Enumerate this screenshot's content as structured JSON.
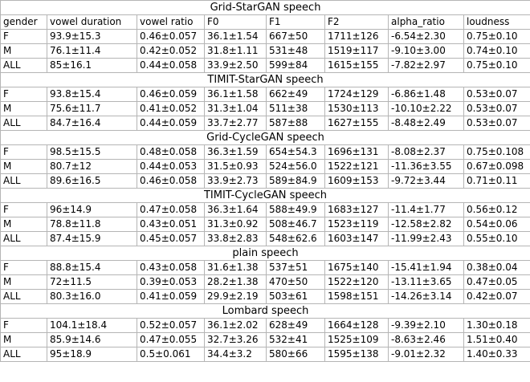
{
  "header": [
    "gender",
    "vowel duration",
    "vowel ratio",
    "F0",
    "F1",
    "F2",
    "alpha_ratio",
    "loudness"
  ],
  "sections": [
    {
      "title": "Grid-StarGAN speech",
      "rows": [
        [
          "F",
          "93.9±15.3",
          "0.46±0.057",
          "36.1±1.54",
          "667±50",
          "1711±126",
          "-6.54±2.30",
          "0.75±0.10"
        ],
        [
          "M",
          "76.1±11.4",
          "0.42±0.052",
          "31.8±1.11",
          "531±48",
          "1519±117",
          "-9.10±3.00",
          "0.74±0.10"
        ],
        [
          "ALL",
          "85±16.1",
          "0.44±0.058",
          "33.9±2.50",
          "599±84",
          "1615±155",
          "-7.82±2.97",
          "0.75±0.10"
        ]
      ]
    },
    {
      "title": "TIMIT-StarGAN speech",
      "rows": [
        [
          "F",
          "93.8±15.4",
          "0.46±0.059",
          "36.1±1.58",
          "662±49",
          "1724±129",
          "-6.86±1.48",
          "0.53±0.07"
        ],
        [
          "M",
          "75.6±11.7",
          "0.41±0.052",
          "31.3±1.04",
          "511±38",
          "1530±113",
          "-10.10±2.22",
          "0.53±0.07"
        ],
        [
          "ALL",
          "84.7±16.4",
          "0.44±0.059",
          "33.7±2.77",
          "587±88",
          "1627±155",
          "-8.48±2.49",
          "0.53±0.07"
        ]
      ]
    },
    {
      "title": "Grid-CycleGAN speech",
      "rows": [
        [
          "F",
          "98.5±15.5",
          "0.48±0.058",
          "36.3±1.59",
          "654±54.3",
          "1696±131",
          "-8.08±2.37",
          "0.75±0.108"
        ],
        [
          "M",
          "80.7±12",
          "0.44±0.053",
          "31.5±0.93",
          "524±56.0",
          "1522±121",
          "-11.36±3.55",
          "0.67±0.098"
        ],
        [
          "ALL",
          "89.6±16.5",
          "0.46±0.058",
          "33.9±2.73",
          "589±84.9",
          "1609±153",
          "-9.72±3.44",
          "0.71±0.11"
        ]
      ]
    },
    {
      "title": "TIMIT-CycleGAN speech",
      "rows": [
        [
          "F",
          "96±14.9",
          "0.47±0.058",
          "36.3±1.64",
          "588±49.9",
          "1683±127",
          "-11.4±1.77",
          "0.56±0.12"
        ],
        [
          "M",
          "78.8±11.8",
          "0.43±0.051",
          "31.3±0.92",
          "508±46.7",
          "1523±119",
          "-12.58±2.82",
          "0.54±0.06"
        ],
        [
          "ALL",
          "87.4±15.9",
          "0.45±0.057",
          "33.8±2.83",
          "548±62.6",
          "1603±147",
          "-11.99±2.43",
          "0.55±0.10"
        ]
      ]
    },
    {
      "title": "plain speech",
      "rows": [
        [
          "F",
          "88.8±15.4",
          "0.43±0.058",
          "31.6±1.38",
          "537±51",
          "1675±140",
          "-15.41±1.94",
          "0.38±0.04"
        ],
        [
          "M",
          "72±11.5",
          "0.39±0.053",
          "28.2±1.38",
          "470±50",
          "1522±120",
          "-13.11±3.65",
          "0.47±0.05"
        ],
        [
          "ALL",
          "80.3±16.0",
          "0.41±0.059",
          "29.9±2.19",
          "503±61",
          "1598±151",
          "-14.26±3.14",
          "0.42±0.07"
        ]
      ]
    },
    {
      "title": "Lombard speech",
      "rows": [
        [
          "F",
          "104.1±18.4",
          "0.52±0.057",
          "36.1±2.02",
          "628±49",
          "1664±128",
          "-9.39±2.10",
          "1.30±0.18"
        ],
        [
          "M",
          "85.9±14.6",
          "0.47±0.055",
          "32.7±3.26",
          "532±41",
          "1525±109",
          "-8.63±2.46",
          "1.51±0.40"
        ],
        [
          "ALL",
          "95±18.9",
          "0.5±0.061",
          "34.4±3.2",
          "580±66",
          "1595±138",
          "-9.01±2.32",
          "1.40±0.33"
        ]
      ]
    }
  ]
}
